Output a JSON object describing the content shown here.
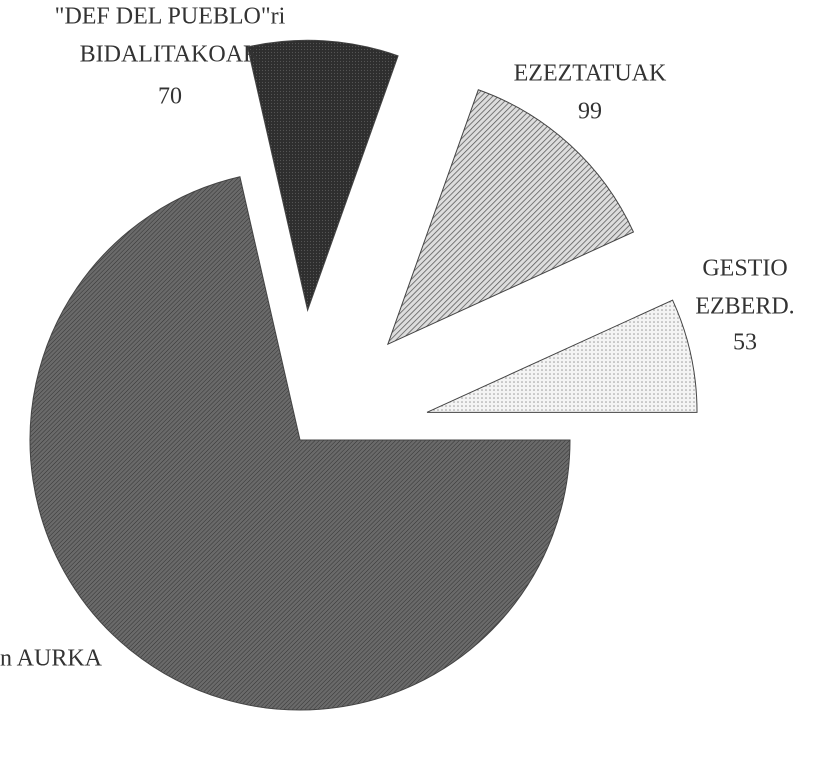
{
  "chart_data": {
    "type": "pie",
    "categories": [
      [
        "GESTIO",
        "EZBERD."
      ],
      [
        "EZEZTATUAK"
      ],
      [
        "\"DEF  DEL PUEBLO\"ri",
        "BIDALITAKOAK"
      ],
      [
        "n AURKA"
      ]
    ],
    "values": [
      53,
      99,
      70,
      555
    ],
    "printed_values": [
      true,
      true,
      true,
      false
    ],
    "colors": [
      "#e4e4e4",
      "#9a9a9a",
      "#3a3a3a",
      "#5e5e5e"
    ]
  }
}
